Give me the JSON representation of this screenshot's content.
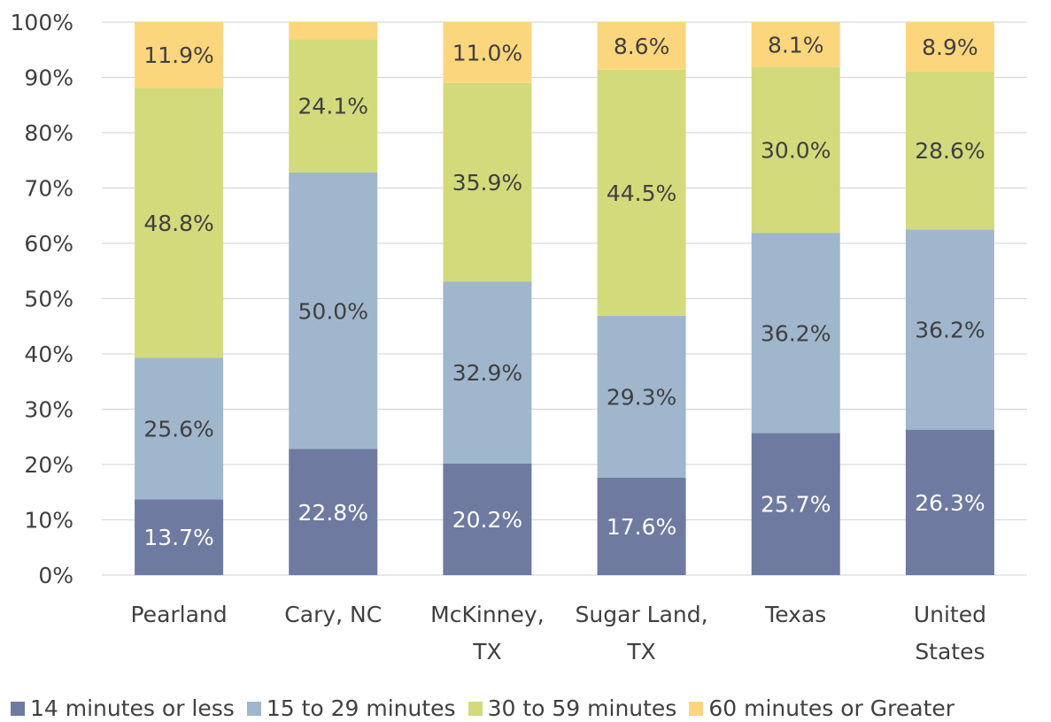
{
  "chart_data": {
    "type": "bar",
    "stacked": true,
    "percent": true,
    "categories": [
      "Pearland",
      "Cary, NC",
      "McKinney, TX",
      "Sugar Land, TX",
      "Texas",
      "United States"
    ],
    "category_lines": [
      [
        "Pearland"
      ],
      [
        "Cary, NC"
      ],
      [
        "McKinney,",
        "TX"
      ],
      [
        "Sugar Land,",
        "TX"
      ],
      [
        "Texas"
      ],
      [
        "United",
        "States"
      ]
    ],
    "series": [
      {
        "name": "14 minutes or less",
        "values": [
          13.7,
          22.8,
          20.2,
          17.6,
          25.7,
          26.3
        ],
        "labels": [
          "13.7%",
          "22.8%",
          "20.2%",
          "17.6%",
          "25.7%",
          "26.3%"
        ],
        "color": "#6e7aa0",
        "label_color": "#ffffff"
      },
      {
        "name": "15 to 29 minutes",
        "values": [
          25.6,
          50.0,
          32.9,
          29.3,
          36.2,
          36.2
        ],
        "labels": [
          "25.6%",
          "50.0%",
          "32.9%",
          "29.3%",
          "36.2%",
          "36.2%"
        ],
        "color": "#a0b6cc",
        "label_color": "#404040"
      },
      {
        "name": "30 to 59 minutes",
        "values": [
          48.8,
          24.1,
          35.9,
          44.5,
          30.0,
          28.6
        ],
        "labels": [
          "48.8%",
          "24.1%",
          "35.9%",
          "44.5%",
          "30.0%",
          "28.6%"
        ],
        "color": "#d3da7c",
        "label_color": "#404040"
      },
      {
        "name": "60 minutes or Greater",
        "values": [
          11.9,
          3.1,
          11.0,
          8.6,
          8.1,
          8.9
        ],
        "labels": [
          "11.9%",
          "",
          "11.0%",
          "8.6%",
          "8.1%",
          "8.9%"
        ],
        "color": "#fcd67c",
        "label_color": "#404040"
      }
    ],
    "ylim": [
      0,
      100
    ],
    "yticks": [
      "0%",
      "10%",
      "20%",
      "30%",
      "40%",
      "50%",
      "60%",
      "70%",
      "80%",
      "90%",
      "100%"
    ],
    "grid": true,
    "legend_position": "bottom",
    "title": "",
    "xlabel": "",
    "ylabel": ""
  }
}
